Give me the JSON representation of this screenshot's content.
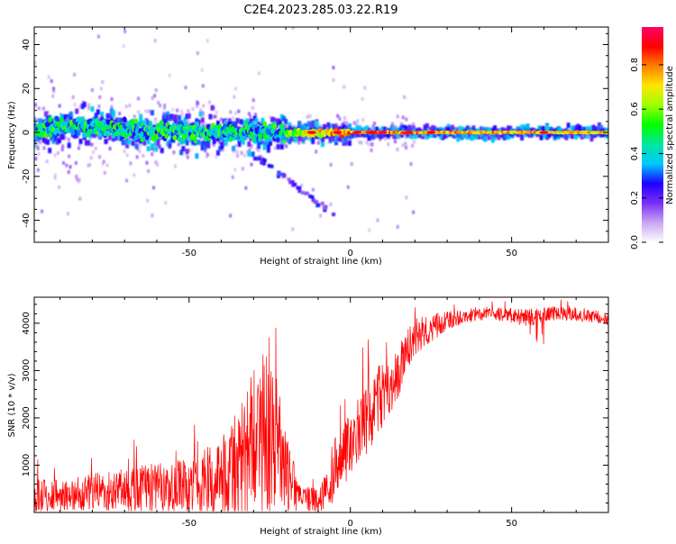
{
  "title": "C2E4.2023.285.03.22.R19",
  "chart_data": [
    {
      "type": "heatmap",
      "xlabel": "Height of straight line (km)",
      "ylabel": "Frequency (Hz)",
      "xlim": [
        -98,
        80
      ],
      "ylim": [
        -50,
        48
      ],
      "x_ticks": [
        -50,
        0,
        50
      ],
      "y_ticks": [
        -40,
        -20,
        0,
        20,
        40
      ],
      "colorbar": {
        "label": "Normalized spectral amplitude",
        "range": [
          0.0,
          0.97
        ],
        "ticks": [
          0.0,
          0.2,
          0.4,
          0.6,
          0.8
        ],
        "colormap": [
          "#ffffff",
          "#c9a6f2",
          "#7b2ff7",
          "#1e00ff",
          "#00c8ff",
          "#00e6a0",
          "#00ff00",
          "#9cff00",
          "#ffe600",
          "#ff8000",
          "#ff0000",
          "#ff0066"
        ]
      },
      "ridge": [
        {
          "x": -95,
          "f": 2,
          "amp": 0.45
        },
        {
          "x": -80,
          "f": 3,
          "amp": 0.5
        },
        {
          "x": -60,
          "f": 0,
          "amp": 0.5
        },
        {
          "x": -40,
          "f": 0,
          "amp": 0.55
        },
        {
          "x": -25,
          "f": 0,
          "amp": 0.6
        },
        {
          "x": -10,
          "f": 0,
          "amp": 0.8
        },
        {
          "x": 0,
          "f": 0,
          "amp": 0.9
        },
        {
          "x": 20,
          "f": 0,
          "amp": 0.9
        },
        {
          "x": 50,
          "f": 0,
          "amp": 0.85
        },
        {
          "x": 80,
          "f": 0,
          "amp": 0.8
        }
      ]
    },
    {
      "type": "line",
      "xlabel": "Height of straight line (km)",
      "ylabel": "SNR (10 * v/v)",
      "xlim": [
        -98,
        80
      ],
      "ylim": [
        0,
        4550
      ],
      "x_ticks": [
        -50,
        0,
        50
      ],
      "y_ticks": [
        1000,
        2000,
        3000,
        4000
      ],
      "color": "#ff0000",
      "series": [
        {
          "x": [
            -98,
            -90,
            -80,
            -70,
            -60,
            -50,
            -40,
            -35,
            -30,
            -28,
            -25,
            -22,
            -20,
            -15,
            -10,
            -5,
            0,
            5,
            10,
            15,
            20,
            25,
            30,
            35,
            40,
            45,
            50,
            55,
            60,
            65,
            70,
            75,
            80
          ],
          "values": [
            350,
            380,
            430,
            480,
            520,
            560,
            650,
            850,
            1300,
            1500,
            1600,
            1200,
            800,
            300,
            250,
            700,
            1500,
            2000,
            2500,
            3000,
            3700,
            3900,
            4050,
            4150,
            4200,
            4200,
            4150,
            4100,
            4200,
            4200,
            4200,
            4150,
            4100
          ],
          "spread": [
            350,
            350,
            400,
            450,
            550,
            600,
            900,
            1300,
            1700,
            1900,
            1700,
            1400,
            900,
            250,
            300,
            500,
            700,
            800,
            700,
            600,
            400,
            300,
            200,
            150,
            150,
            150,
            150,
            200,
            150,
            150,
            150,
            150,
            150
          ]
        }
      ]
    }
  ]
}
